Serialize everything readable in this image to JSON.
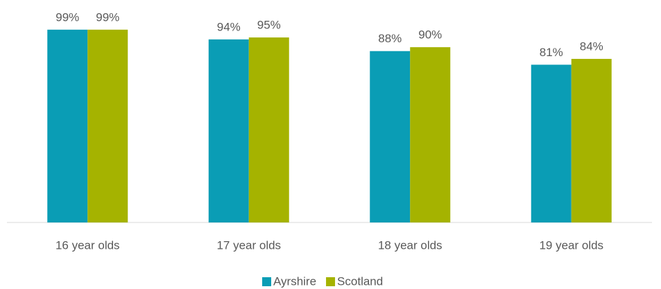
{
  "chart_data": {
    "type": "bar",
    "categories": [
      "16 year olds",
      "17 year olds",
      "18 year olds",
      "19 year olds"
    ],
    "series": [
      {
        "name": "Ayrshire",
        "color": "#0a9db5",
        "values": [
          99,
          94,
          88,
          81
        ],
        "value_labels": [
          "99%",
          "94%",
          "88%",
          "81%"
        ]
      },
      {
        "name": "Scotland",
        "color": "#a5b300",
        "values": [
          99,
          95,
          90,
          84
        ],
        "value_labels": [
          "99%",
          "95%",
          "90%",
          "84%"
        ]
      }
    ],
    "ylim": [
      0,
      100
    ],
    "legend": "bottom"
  }
}
